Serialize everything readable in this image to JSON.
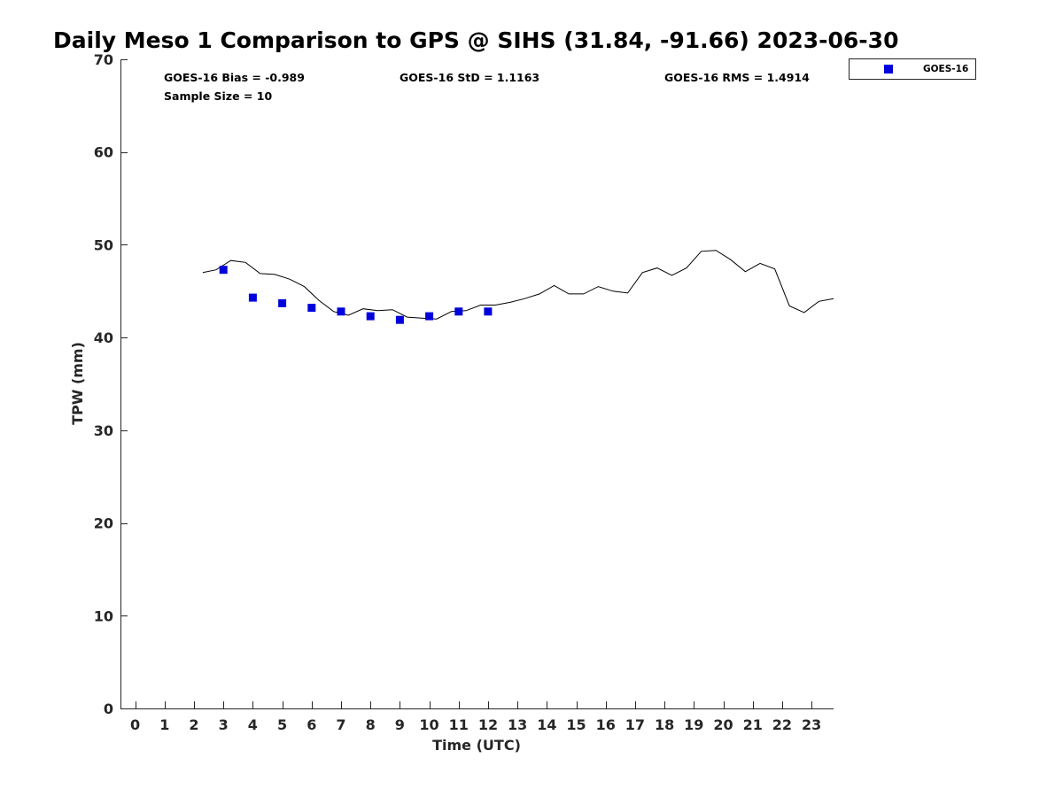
{
  "chart_data": {
    "type": "scatter",
    "title": "Daily Meso 1 Comparison to GPS @ SIHS (31.84, -91.66) 2023-06-30",
    "xlabel": "Time (UTC)",
    "ylabel": "TPW (mm)",
    "xlim": [
      -0.5,
      23.75
    ],
    "ylim": [
      0,
      70
    ],
    "x_ticks": [
      0,
      1,
      2,
      3,
      4,
      5,
      6,
      7,
      8,
      9,
      10,
      11,
      12,
      13,
      14,
      15,
      16,
      17,
      18,
      19,
      20,
      21,
      22,
      23
    ],
    "y_ticks": [
      0,
      10,
      20,
      30,
      40,
      50,
      60,
      70
    ],
    "grid": false,
    "legend_position": "outside top-right",
    "annotations": [
      {
        "text": "GOES-16 Bias = -0.989"
      },
      {
        "text": "GOES-16 StD = 1.1163"
      },
      {
        "text": "GOES-16 RMS = 1.4914"
      },
      {
        "text": "Sample Size = 10"
      }
    ],
    "series": [
      {
        "name": "GOES-16",
        "kind": "scatter",
        "marker": "square",
        "color": "#0000dd",
        "x": [
          3,
          4,
          5,
          6,
          7,
          8,
          9,
          10,
          11,
          12
        ],
        "y": [
          47.3,
          44.3,
          43.7,
          43.2,
          42.8,
          42.3,
          41.9,
          42.3,
          42.8,
          42.8
        ]
      },
      {
        "kind": "line",
        "color": "#000000",
        "x": [
          2.3,
          2.75,
          3.25,
          3.75,
          4.25,
          4.75,
          5.25,
          5.75,
          6.25,
          6.75,
          7.25,
          7.75,
          8.25,
          8.75,
          9.25,
          9.75,
          10.25,
          10.75,
          11.25,
          11.75,
          12.25,
          12.75,
          13.25,
          13.75,
          14.25,
          14.75,
          15.25,
          15.75,
          16.25,
          16.75,
          17.25,
          17.75,
          18.25,
          18.75,
          19.25,
          19.75,
          20.25,
          20.75,
          21.25,
          21.75,
          22.25,
          22.75,
          23.25,
          23.75
        ],
        "y": [
          47.0,
          47.3,
          48.3,
          48.1,
          46.9,
          46.8,
          46.3,
          45.5,
          44.0,
          42.8,
          42.4,
          43.1,
          42.9,
          43.0,
          42.2,
          42.1,
          42.0,
          42.8,
          42.9,
          43.5,
          43.5,
          43.8,
          44.2,
          44.7,
          45.6,
          44.7,
          44.7,
          45.5,
          45.0,
          44.8,
          47.0,
          47.5,
          46.7,
          47.5,
          49.3,
          49.4,
          48.4,
          47.1,
          48.0,
          47.4,
          43.4,
          42.7,
          43.9,
          44.2
        ]
      }
    ]
  }
}
